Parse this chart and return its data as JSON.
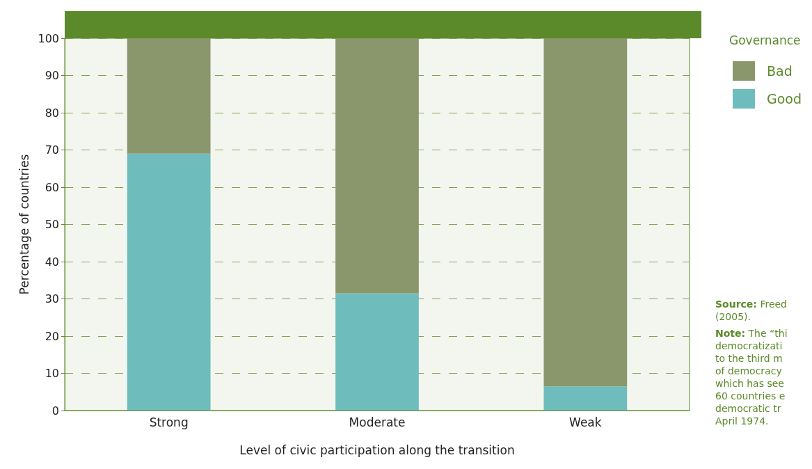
{
  "chart_data": {
    "type": "bar",
    "xlabel": "Level of civic participation along the transition",
    "ylabel": "Percentage of countries",
    "legend_title": "Governance",
    "categories": [
      "Strong",
      "Moderate",
      "Weak"
    ],
    "series": [
      {
        "name": "Good",
        "color": "#6fbcbd",
        "values": [
          69,
          31.5,
          6.5
        ]
      },
      {
        "name": "Bad",
        "color": "#8a966c",
        "values": [
          31,
          68.5,
          93.5
        ]
      }
    ],
    "stacked": true,
    "ylim": [
      0,
      100
    ],
    "yticks": [
      0,
      10,
      20,
      30,
      40,
      50,
      60,
      70,
      80,
      90,
      100
    ],
    "grid": "y",
    "legend": "top right",
    "annotations": [
      "Source: Freed\n(2005).",
      "Note: The “thi\ndemocratizati\nto the third m\nof democracy\nwhich has see\n60 countries e\ndemocratic tr\nApril 1974."
    ]
  }
}
